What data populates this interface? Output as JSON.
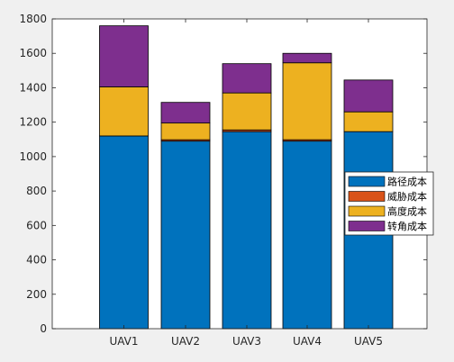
{
  "chart_data": {
    "type": "bar",
    "stacked": true,
    "categories": [
      "UAV1",
      "UAV2",
      "UAV3",
      "UAV4",
      "UAV5"
    ],
    "series": [
      {
        "name": "路径成本",
        "color": "#0072bd",
        "values": [
          1120,
          1090,
          1145,
          1090,
          1145
        ]
      },
      {
        "name": "威胁成本",
        "color": "#d95319",
        "values": [
          0,
          8,
          10,
          8,
          0
        ]
      },
      {
        "name": "高度成本",
        "color": "#edb120",
        "values": [
          285,
          97,
          215,
          447,
          115
        ]
      },
      {
        "name": "转角成本",
        "color": "#7e2f8e",
        "values": [
          355,
          120,
          170,
          55,
          185
        ]
      }
    ],
    "title": "",
    "xlabel": "",
    "ylabel": "",
    "ylim": [
      0,
      1800
    ],
    "yticks": [
      0,
      200,
      400,
      600,
      800,
      1000,
      1200,
      1400,
      1600,
      1800
    ],
    "grid": false,
    "legend_location": "east"
  }
}
